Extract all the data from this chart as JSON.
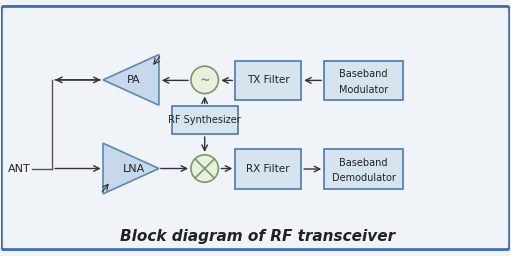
{
  "title": "Block diagram of RF transceiver",
  "title_fontsize": 11,
  "title_fontstyle": "italic",
  "bg_color": "#f0f4f8",
  "border_color": "#3a6dbf",
  "box_facecolor": "#d6e4f0",
  "box_edgecolor": "#4a7ab5",
  "triangle_facecolor": "#c8d8ec",
  "triangle_edgecolor": "#5a8ab0",
  "mixer_facecolor": "#e8f0e0",
  "mixer_edgecolor": "#7a9a60",
  "arrow_color": "#333333",
  "text_color": "#222222",
  "line_color": "#555555",
  "ant_label": "ANT",
  "pa_label": "PA",
  "lna_label": "LNA",
  "tx_filter_label": "TX Filter",
  "rx_filter_label": "RX Filter",
  "rf_synth_label": "RF Synthesizer",
  "bb_mod_label1": "Baseband",
  "bb_mod_label2": "Modulator",
  "bb_demod_label1": "Baseband",
  "bb_demod_label2": "Demodulator"
}
